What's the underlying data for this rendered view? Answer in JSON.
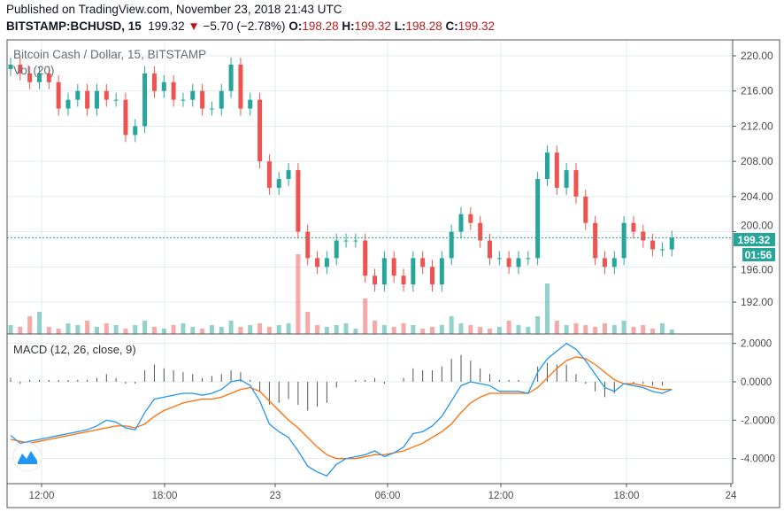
{
  "header": {
    "published": "Published on TradingView.com, November 23, 2018 21:43 UTC",
    "symbol": "BITSTAMP:BCHUSD, 15",
    "last": "199.32",
    "change": "−5.70 (−2.78%)",
    "o_label": "O:",
    "o": "198.28",
    "h_label": "H:",
    "h": "199.32",
    "l_label": "L:",
    "l": "198.28",
    "c_label": "C:",
    "c": "199.32"
  },
  "legend": {
    "series_title": "Bitcoin Cash / Dollar, 15, BITSTAMP",
    "volume": "Vol (20)",
    "macd": "MACD (12, 26, close, 9)"
  },
  "price_label": "199.32",
  "countdown": "01:56",
  "colors": {
    "up": "#26a69a",
    "down": "#ef5350",
    "macd": "#2196f3",
    "signal": "#ff6d00",
    "grid": "#e1ecf2",
    "price_line": "#26a69a"
  },
  "chart_data": [
    {
      "type": "candlestick",
      "ylim": [
        188,
        222
      ],
      "y_ticks": [
        "220.00",
        "216.00",
        "212.00",
        "208.00",
        "204.00",
        "200.00",
        "196.00",
        "192.00"
      ],
      "x_ticks": [
        "12:00",
        "18:00",
        "23",
        "06:00",
        "12:00",
        "18:00",
        "24"
      ],
      "close": [
        219,
        218,
        217,
        218,
        217,
        214,
        215,
        216,
        214,
        216,
        215,
        215,
        211,
        212,
        218,
        216,
        217,
        215,
        215,
        216,
        214,
        214,
        216,
        219,
        214,
        215,
        208,
        205,
        206,
        207,
        200,
        197,
        196,
        197,
        199,
        199,
        199,
        195,
        194,
        197,
        195,
        194,
        197,
        196,
        194,
        197,
        200,
        202,
        201,
        199,
        197,
        197,
        196,
        197,
        197,
        206,
        209,
        205,
        207,
        204,
        201,
        197,
        196,
        197,
        201,
        200,
        199,
        198,
        198,
        199.32
      ],
      "volume": [
        10,
        8,
        20,
        25,
        8,
        6,
        12,
        10,
        15,
        8,
        12,
        10,
        6,
        10,
        15,
        8,
        6,
        10,
        12,
        8,
        6,
        10,
        8,
        15,
        8,
        10,
        12,
        8,
        10,
        12,
        90,
        25,
        10,
        8,
        10,
        12,
        6,
        40,
        15,
        10,
        8,
        12,
        10,
        6,
        8,
        10,
        20,
        12,
        10,
        8,
        6,
        8,
        15,
        10,
        8,
        20,
        57,
        15,
        10,
        12,
        10,
        8,
        12,
        10,
        15,
        8,
        10,
        6,
        12,
        5
      ]
    },
    {
      "type": "line",
      "title": "MACD (12, 26, close, 9)",
      "ylim": [
        -5.3,
        2.5
      ],
      "y_ticks": [
        "2.0000",
        "0.0000",
        "-2.0000",
        "-4.0000"
      ],
      "series": [
        {
          "values": [
            -2.8,
            -3.2,
            -3.1,
            -3.0,
            -2.9,
            -2.8,
            -2.7,
            -2.6,
            -2.5,
            -2.3,
            -2.0,
            -2.1,
            -2.4,
            -2.5,
            -1.6,
            -0.9,
            -0.8,
            -0.7,
            -0.6,
            -0.6,
            -0.7,
            -0.6,
            -0.4,
            0.0,
            0.1,
            -0.2,
            -1.0,
            -2.2,
            -2.6,
            -2.9,
            -3.6,
            -4.4,
            -4.7,
            -4.9,
            -4.3,
            -4.0,
            -3.9,
            -3.8,
            -3.6,
            -3.9,
            -3.7,
            -3.4,
            -2.7,
            -2.6,
            -2.3,
            -1.8,
            -1.0,
            -0.2,
            0.0,
            -0.1,
            -0.2,
            -0.5,
            -0.5,
            -0.5,
            -0.6,
            0.5,
            1.2,
            1.6,
            2.0,
            1.7,
            1.1,
            0.4,
            -0.3,
            -0.5,
            -0.1,
            -0.2,
            -0.3,
            -0.5,
            -0.6,
            -0.4
          ]
        },
        {
          "values": [
            -3.0,
            -3.1,
            -3.2,
            -3.1,
            -3.0,
            -2.9,
            -2.8,
            -2.7,
            -2.6,
            -2.5,
            -2.4,
            -2.3,
            -2.3,
            -2.4,
            -2.2,
            -1.8,
            -1.5,
            -1.3,
            -1.1,
            -1.0,
            -0.9,
            -0.9,
            -0.8,
            -0.6,
            -0.4,
            -0.3,
            -0.5,
            -1.0,
            -1.5,
            -2.0,
            -2.4,
            -2.9,
            -3.4,
            -3.8,
            -4.0,
            -4.0,
            -4.0,
            -3.9,
            -3.8,
            -3.8,
            -3.7,
            -3.6,
            -3.4,
            -3.2,
            -2.9,
            -2.6,
            -2.2,
            -1.6,
            -1.1,
            -0.8,
            -0.6,
            -0.6,
            -0.6,
            -0.6,
            -0.6,
            -0.3,
            0.2,
            0.7,
            1.1,
            1.3,
            1.2,
            0.9,
            0.5,
            0.1,
            -0.1,
            -0.1,
            -0.2,
            -0.3,
            -0.4,
            -0.4
          ]
        }
      ]
    }
  ]
}
